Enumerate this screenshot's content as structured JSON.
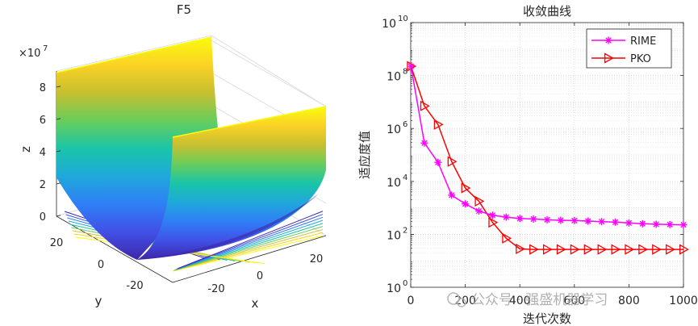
{
  "figure": {
    "watermark": "公众号 · 强盛机器学习",
    "watermark_color": "#b0b0b0"
  },
  "chart_data": [
    {
      "type": "surface",
      "title": "F5",
      "xlabel": "x",
      "ylabel": "y",
      "zlabel": "z",
      "z_exponent_label": "×10",
      "z_exponent_power": "7",
      "x_ticks": [
        "-20",
        "0",
        "20"
      ],
      "y_ticks": [
        "20",
        "0",
        "-20"
      ],
      "z_ticks": [
        "0",
        "2",
        "4",
        "6",
        "8"
      ],
      "x_range": [
        -30,
        30
      ],
      "y_range": [
        -30,
        30
      ],
      "z_range": [
        0,
        9
      ],
      "colormap": [
        "#3e26a8",
        "#4150e7",
        "#2f7ff6",
        "#1fa8db",
        "#1ac5a8",
        "#69cd5b",
        "#c7bf30",
        "#fbd225",
        "#f9fb0e"
      ]
    },
    {
      "type": "line",
      "title": "收敛曲线",
      "xlabel": "迭代次数",
      "ylabel": "适应度值",
      "yscale": "log",
      "xlim": [
        0,
        1000
      ],
      "ylim_exp": [
        0,
        10
      ],
      "x_ticks": [
        "0",
        "200",
        "400",
        "600",
        "800",
        "1000"
      ],
      "y_ticks": [
        {
          "base": "10",
          "exp": "0"
        },
        {
          "base": "10",
          "exp": "2"
        },
        {
          "base": "10",
          "exp": "4"
        },
        {
          "base": "10",
          "exp": "6"
        },
        {
          "base": "10",
          "exp": "8"
        },
        {
          "base": "10",
          "exp": "10"
        }
      ],
      "legend_position": "top-right",
      "x": [
        1,
        50,
        100,
        150,
        200,
        250,
        300,
        350,
        400,
        450,
        500,
        550,
        600,
        650,
        700,
        750,
        800,
        850,
        900,
        950,
        1000
      ],
      "series": [
        {
          "name": "RIME",
          "color": "#ff00ff",
          "marker": "asterisk",
          "values_log10": [
            8.35,
            5.45,
            4.72,
            3.48,
            3.15,
            2.88,
            2.72,
            2.65,
            2.6,
            2.58,
            2.55,
            2.53,
            2.52,
            2.5,
            2.48,
            2.46,
            2.43,
            2.4,
            2.38,
            2.37,
            2.36
          ]
        },
        {
          "name": "PKO",
          "color": "#ff0000",
          "marker": "triangle-right",
          "values_log10": [
            8.35,
            6.85,
            6.15,
            4.75,
            3.75,
            3.25,
            2.45,
            1.85,
            1.45,
            1.43,
            1.43,
            1.43,
            1.43,
            1.43,
            1.43,
            1.43,
            1.43,
            1.43,
            1.43,
            1.43,
            1.43
          ]
        }
      ]
    }
  ]
}
